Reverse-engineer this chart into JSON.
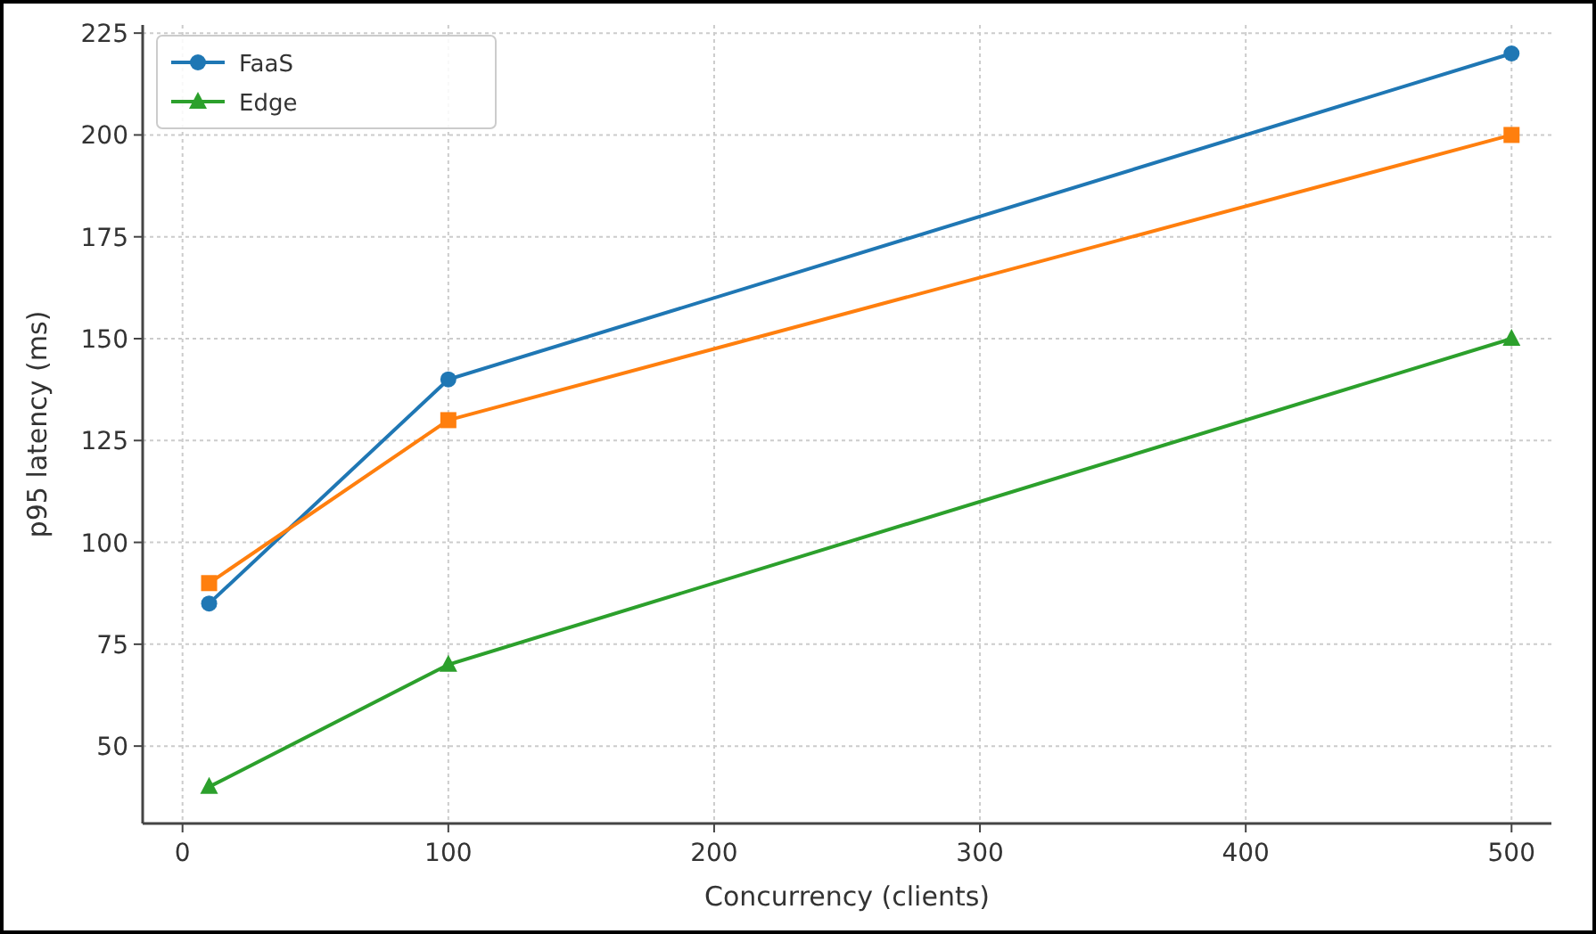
{
  "chart_data": {
    "type": "line",
    "xlabel": "Concurrency (clients)",
    "ylabel": "p95 latency (ms)",
    "x": [
      10,
      100,
      500
    ],
    "series": [
      {
        "name": "FaaS",
        "color": "#1f77b4",
        "marker": "circle",
        "values": [
          85,
          140,
          220
        ]
      },
      {
        "color": "#ff7f0e",
        "marker": "square",
        "values": [
          90,
          130,
          200
        ]
      },
      {
        "name": "Edge",
        "color": "#2ca02c",
        "marker": "triangle",
        "values": [
          40,
          70,
          150
        ]
      }
    ],
    "xlim": [
      -15,
      515
    ],
    "ylim": [
      31,
      227
    ],
    "xticks": [
      0,
      100,
      200,
      300,
      400,
      500
    ],
    "yticks": [
      50,
      75,
      100,
      125,
      150,
      175,
      200,
      225
    ],
    "grid": true,
    "legend": "top left",
    "line_style": "solid"
  }
}
